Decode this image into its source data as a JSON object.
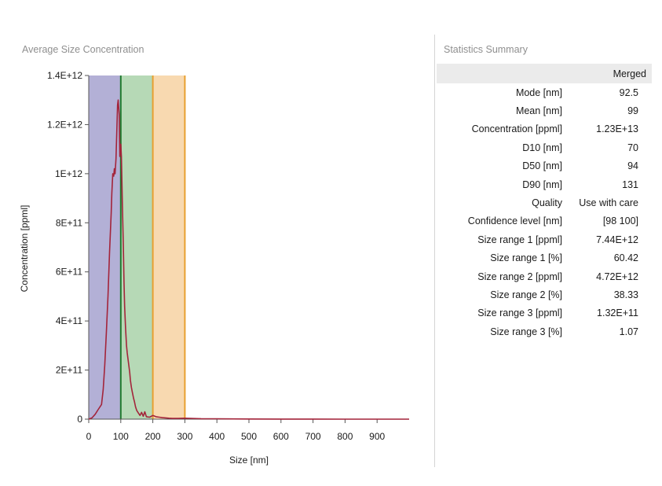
{
  "chart_data": {
    "type": "area",
    "title": "Average Size Concentration",
    "xlabel": "Size [nm]",
    "ylabel": "Concentration [ppml]",
    "xlim": [
      0,
      1000
    ],
    "ylim": [
      0,
      1400000000000.0
    ],
    "x_ticks": [
      0,
      100,
      200,
      300,
      400,
      500,
      600,
      700,
      800,
      900
    ],
    "x_tick_labels": [
      "0",
      "100",
      "200",
      "300",
      "400",
      "500",
      "600",
      "700",
      "800",
      "900"
    ],
    "y_ticks": [
      0,
      200000000000.0,
      400000000000.0,
      600000000000.0,
      800000000000.0,
      1000000000000.0,
      1200000000000.0,
      1400000000000.0
    ],
    "y_tick_labels": [
      "0",
      "2E+11",
      "4E+11",
      "6E+11",
      "8E+11",
      "1E+12",
      "1.2E+12",
      "1.4E+12"
    ],
    "size_ranges": [
      {
        "name": "Size range 1",
        "from": 0,
        "to": 100,
        "color": "#b3b0d6"
      },
      {
        "name": "Size range 2",
        "from": 100,
        "to": 200,
        "color": "#b6d9b6"
      },
      {
        "name": "Size range 3",
        "from": 200,
        "to": 300,
        "color": "#f8d9b0"
      }
    ],
    "markers": [
      {
        "x": 100,
        "color": "#1f7a2e"
      },
      {
        "x": 200,
        "color": "#e8a030"
      },
      {
        "x": 300,
        "color": "#e8a030"
      }
    ],
    "series": [
      {
        "name": "Merged",
        "color": "#a3243a",
        "x": [
          0,
          10,
          20,
          30,
          40,
          45,
          50,
          55,
          60,
          65,
          70,
          72,
          75,
          78,
          80,
          82,
          85,
          88,
          90,
          92,
          95,
          97,
          100,
          102,
          105,
          108,
          110,
          112,
          115,
          118,
          120,
          122,
          125,
          128,
          130,
          133,
          136,
          140,
          143,
          146,
          150,
          155,
          160,
          165,
          170,
          175,
          180,
          190,
          200,
          210,
          220,
          230,
          240,
          250,
          260,
          280,
          300,
          350,
          400,
          450,
          500,
          600,
          700,
          800,
          900,
          1000
        ],
        "values": [
          0,
          5000000000.0,
          20000000000.0,
          40000000000.0,
          60000000000.0,
          120000000000.0,
          220000000000.0,
          350000000000.0,
          500000000000.0,
          680000000000.0,
          840000000000.0,
          920000000000.0,
          1000000000000.0,
          990000000000.0,
          1020000000000.0,
          1000000000000.0,
          1060000000000.0,
          1190000000000.0,
          1280000000000.0,
          1300000000000.0,
          1240000000000.0,
          1070000000000.0,
          1120000000000.0,
          1070000000000.0,
          880000000000.0,
          700000000000.0,
          560000000000.0,
          460000000000.0,
          370000000000.0,
          300000000000.0,
          270000000000.0,
          250000000000.0,
          220000000000.0,
          190000000000.0,
          160000000000.0,
          130000000000.0,
          110000000000.0,
          85000000000.0,
          70000000000.0,
          50000000000.0,
          35000000000.0,
          25000000000.0,
          15000000000.0,
          28000000000.0,
          12000000000.0,
          30000000000.0,
          10000000000.0,
          8000000000.0,
          15000000000.0,
          10000000000.0,
          8000000000.0,
          6000000000.0,
          5000000000.0,
          4000000000.0,
          3000000000.0,
          3000000000.0,
          4000000000.0,
          2000000000.0,
          1500000000.0,
          1000000000.0,
          500000000.0,
          300000000.0,
          200000000.0,
          100000000.0,
          100000000.0,
          0
        ]
      }
    ]
  },
  "stats": {
    "title": "Statistics Summary",
    "column": "Merged",
    "rows": [
      {
        "label": "Mode [nm]",
        "value": "92.5"
      },
      {
        "label": "Mean [nm]",
        "value": "99"
      },
      {
        "label": "Concentration [ppml]",
        "value": "1.23E+13"
      },
      {
        "label": "D10 [nm]",
        "value": "70"
      },
      {
        "label": "D50 [nm]",
        "value": "94"
      },
      {
        "label": "D90 [nm]",
        "value": "131"
      },
      {
        "label": "Quality",
        "value": "Use with care"
      },
      {
        "label": "Confidence level [nm]",
        "value": "[98 100]"
      },
      {
        "label": "Size range 1 [ppml]",
        "value": "7.44E+12"
      },
      {
        "label": "Size range 1 [%]",
        "value": "60.42"
      },
      {
        "label": "Size range 2 [ppml]",
        "value": "4.72E+12"
      },
      {
        "label": "Size range 2 [%]",
        "value": "38.33"
      },
      {
        "label": "Size range 3 [ppml]",
        "value": "1.32E+11"
      },
      {
        "label": "Size range 3 [%]",
        "value": "1.07"
      }
    ]
  }
}
